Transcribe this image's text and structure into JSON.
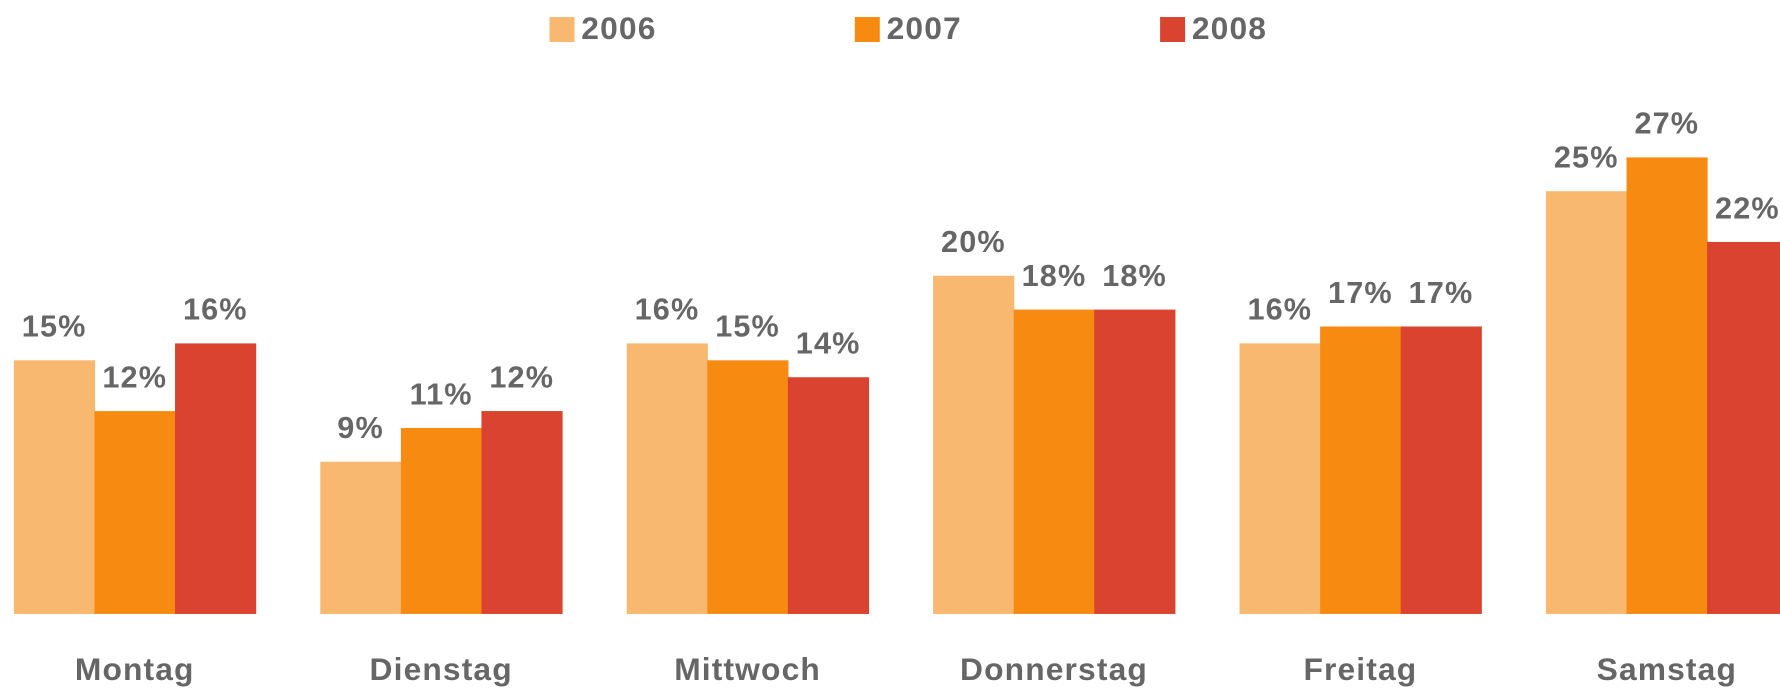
{
  "chart_data": {
    "type": "bar",
    "categories": [
      "Montag",
      "Dienstag",
      "Mittwoch",
      "Donnerstag",
      "Freitag",
      "Samstag"
    ],
    "series": [
      {
        "name": "2006",
        "color": "#F9B870",
        "values": [
          15,
          9,
          16,
          20,
          16,
          25
        ],
        "value_labels": [
          "15%",
          "9%",
          "16%",
          "20%",
          "16%",
          "25%"
        ]
      },
      {
        "name": "2007",
        "color": "#F78B12",
        "values": [
          12,
          11,
          15,
          18,
          17,
          27
        ],
        "value_labels": [
          "12%",
          "11%",
          "15%",
          "18%",
          "17%",
          "27%"
        ]
      },
      {
        "name": "2008",
        "color": "#D9432F",
        "values": [
          16,
          12,
          14,
          18,
          17,
          22
        ],
        "value_labels": [
          "16%",
          "12%",
          "14%",
          "18%",
          "17%",
          "22%"
        ]
      }
    ],
    "legend": "top"
  }
}
